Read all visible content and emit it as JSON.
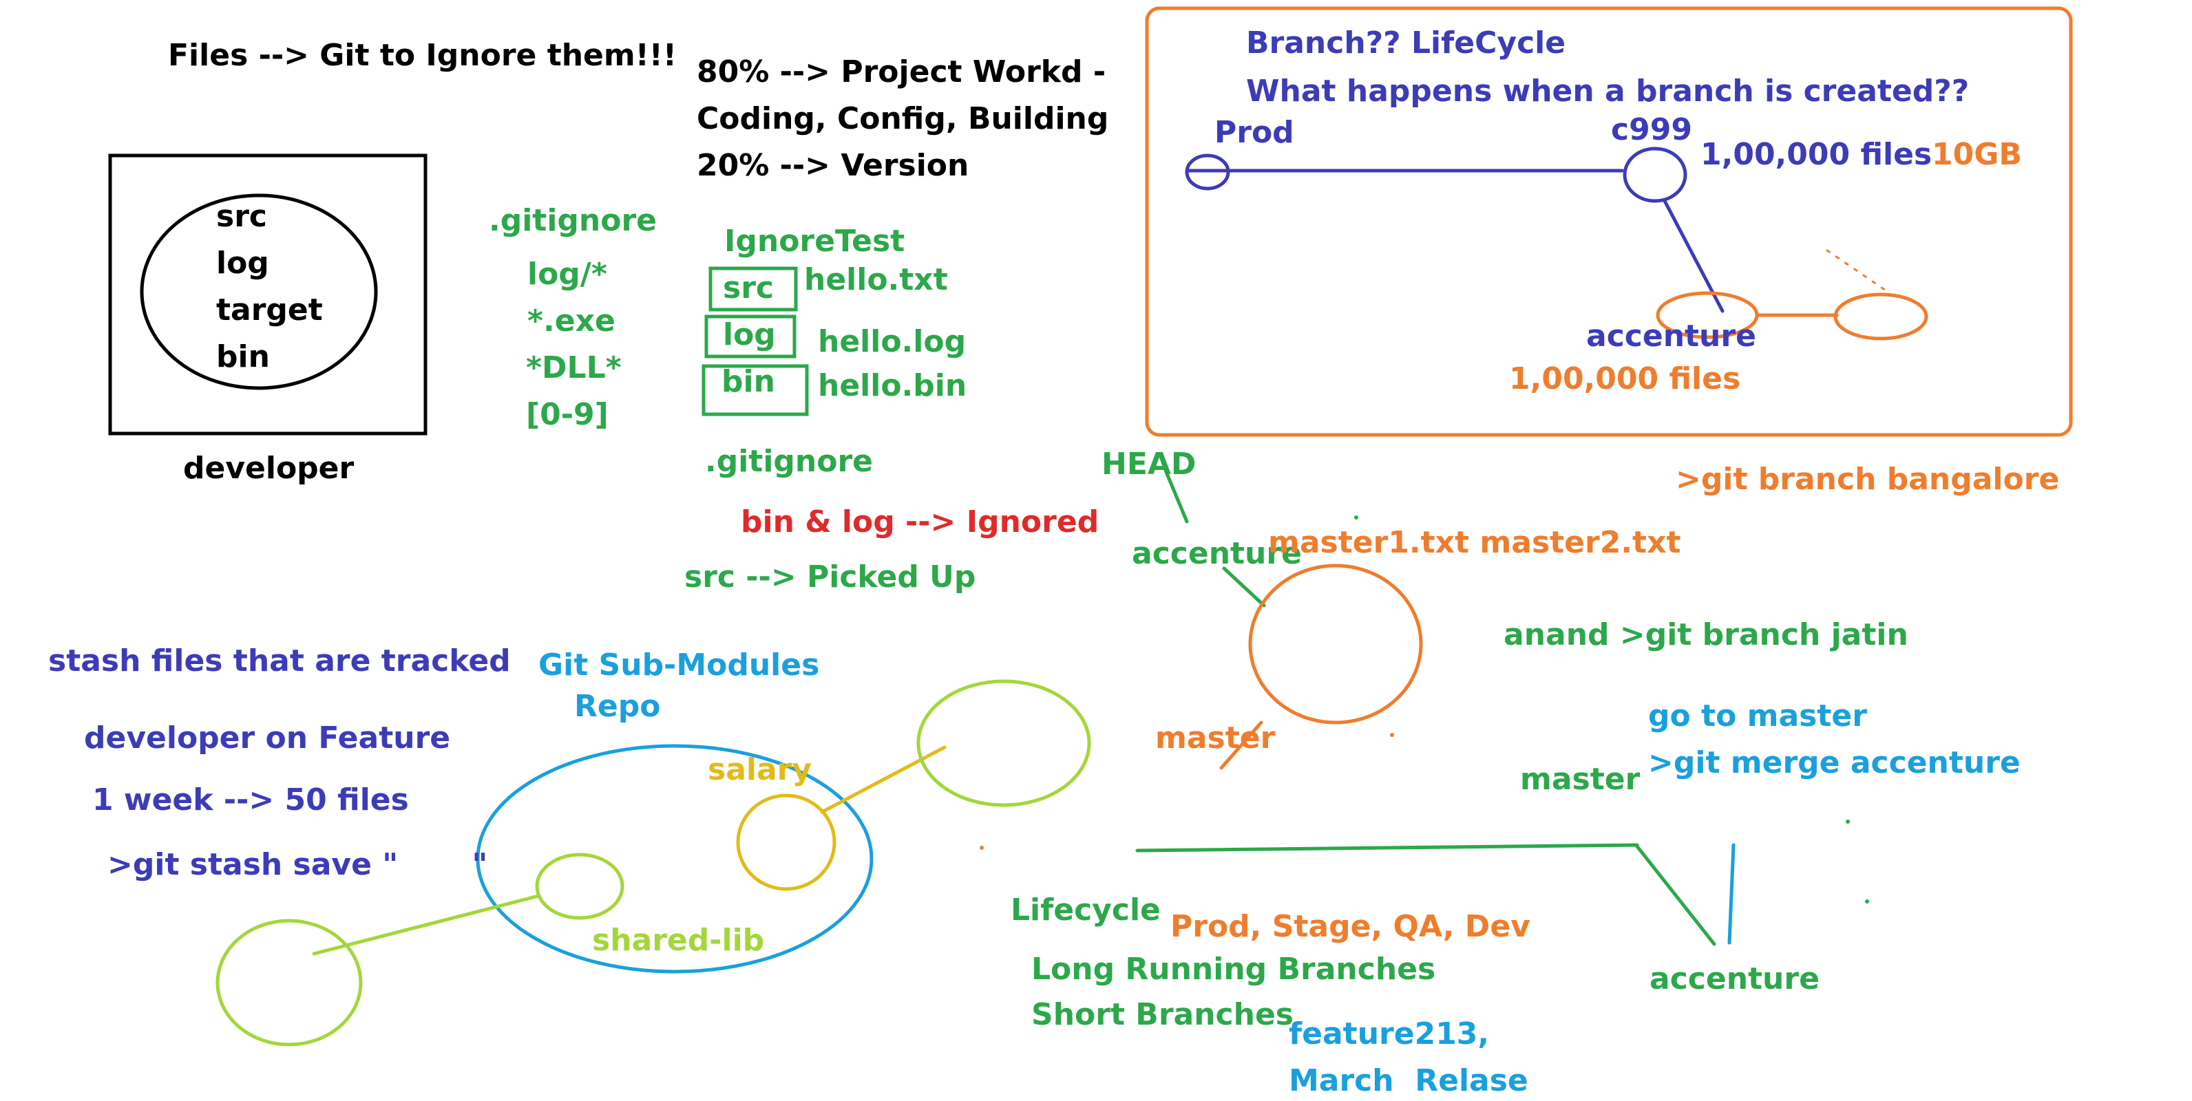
{
  "palette": {
    "black": "#000000",
    "green": "#2ca84a",
    "red": "#e02a2a",
    "indigo": "#3c3cb8",
    "orange": "#ef7d2d",
    "cyan": "#1aa0dc",
    "yellow": "#e3bb18",
    "lime": "#a4d63a"
  },
  "ignore_section": {
    "title": "Files --> Git to Ignore them!!!",
    "folders": [
      "src",
      "log",
      "target",
      "bin"
    ],
    "developer_label": "developer",
    "gitignore_title": ".gitignore",
    "patterns": [
      "log/*",
      "*.exe",
      "*DLL*",
      "[0-9]"
    ]
  },
  "work_split": {
    "lines": [
      "80% --> Project Workd -",
      "Coding, Config, Building",
      "20% --> Version"
    ]
  },
  "ignore_test": {
    "title": "IgnoreTest",
    "rows": [
      {
        "folder": "src",
        "file": "hello.txt"
      },
      {
        "folder": "log",
        "file": "hello.log"
      },
      {
        "folder": "bin",
        "file": "hello.bin"
      }
    ],
    "gitignore_label": ".gitignore",
    "ignored_text": "bin & log --> Ignored",
    "picked_text": "src --> Picked Up"
  },
  "branch_lifecycle": {
    "title": "Branch?? LifeCycle",
    "question": "What happens when a branch is created??",
    "prod_label": "Prod",
    "commit_label": "c999",
    "files_count": "1,00,000 files",
    "size": "10GB",
    "branch_label": "accenture",
    "branch_files": "1,00,000 files"
  },
  "head_diagram": {
    "head_label": "HEAD",
    "accenture_label": "accenture",
    "files_text": "master1.txt master2.txt",
    "master_label": "master",
    "branch_cmd": ">git branch bangalore",
    "jatin_cmd": "anand >git branch jatin"
  },
  "merge_section": {
    "goto_text": "go to master",
    "merge_cmd": ">git merge accenture",
    "master_label": "master",
    "accenture_label": "accenture"
  },
  "stash_section": {
    "title": "stash files that are tracked",
    "line1": "developer on Feature",
    "line2": "1 week --> 50 files",
    "command": ">git stash save \"       \""
  },
  "submodules": {
    "title": "Git Sub-Modules",
    "repo_label": "Repo",
    "salary_label": "salary",
    "shared_label": "shared-lib"
  },
  "lifecycle_section": {
    "title": "Lifecycle",
    "envs": "Prod, Stage, QA, Dev",
    "long_running": "Long Running Branches",
    "short": "Short Branches",
    "feature": "feature213,",
    "release": "March  Relase"
  }
}
